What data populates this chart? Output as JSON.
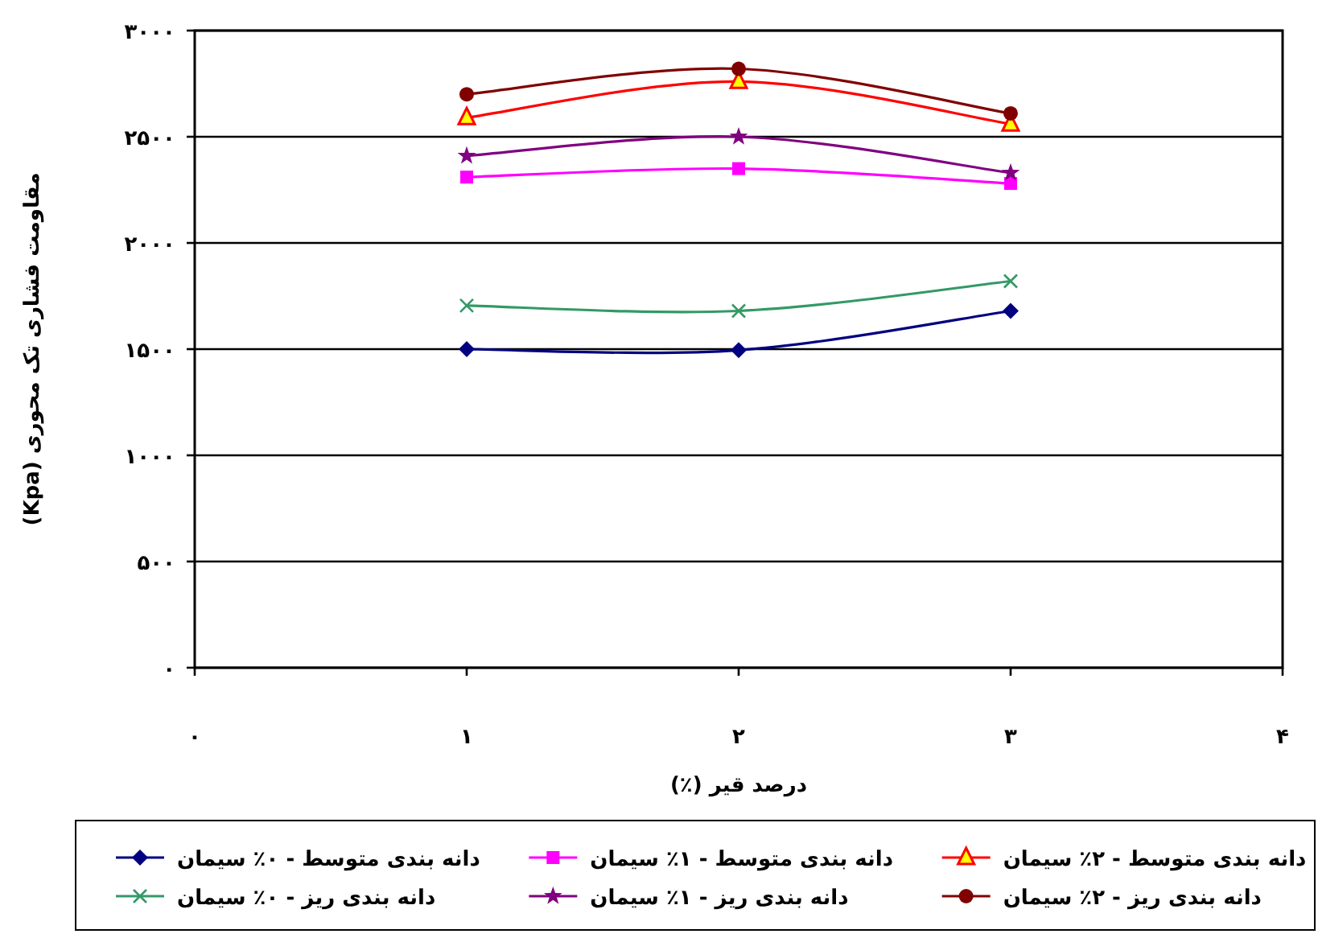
{
  "chart_data": {
    "type": "line",
    "xlabel": "درصد قیر (٪)",
    "ylabel": "مقاومت فشاری تک محوری (Kpa)",
    "x": [
      1,
      2,
      3
    ],
    "xlim": [
      0,
      4
    ],
    "xticks": [
      {
        "value": 0,
        "label": "۰"
      },
      {
        "value": 1,
        "label": "۱"
      },
      {
        "value": 2,
        "label": "۲"
      },
      {
        "value": 3,
        "label": "۳"
      },
      {
        "value": 4,
        "label": "۴"
      }
    ],
    "ylim": [
      0,
      3000
    ],
    "yticks": [
      {
        "value": 0,
        "label": "۰"
      },
      {
        "value": 500,
        "label": "۵۰۰"
      },
      {
        "value": 1000,
        "label": "۱۰۰۰"
      },
      {
        "value": 1500,
        "label": "۱۵۰۰"
      },
      {
        "value": 2000,
        "label": "۲۰۰۰"
      },
      {
        "value": 2500,
        "label": "۲۵۰۰"
      },
      {
        "value": 3000,
        "label": "۳۰۰۰"
      }
    ],
    "grid": "y",
    "legend": "bottom",
    "line_style": "solid",
    "series": [
      {
        "name": "دانه بندی متوسط - ۰٪ سیمان",
        "color": "#000080",
        "marker": "diamond",
        "values": [
          1500,
          1495,
          1680
        ]
      },
      {
        "name": "دانه بندی متوسط - ۱٪ سیمان",
        "color": "#ff00ff",
        "marker": "square",
        "values": [
          2310,
          2350,
          2280
        ]
      },
      {
        "name": "دانه بندی متوسط - ۲٪ سیمان",
        "color": "#ff0000",
        "marker": "triangle",
        "values": [
          2590,
          2760,
          2560
        ]
      },
      {
        "name": "دانه بندی ریز - ۰٪ سیمان",
        "color": "#339966",
        "marker": "cross",
        "values": [
          1705,
          1680,
          1820
        ]
      },
      {
        "name": "دانه بندی ریز - ۱٪ سیمان",
        "color": "#800080",
        "marker": "star",
        "values": [
          2410,
          2500,
          2330
        ]
      },
      {
        "name": "دانه بندی ریز - ۲٪ سیمان",
        "color": "#800000",
        "marker": "circle",
        "values": [
          2700,
          2820,
          2610
        ]
      }
    ]
  }
}
